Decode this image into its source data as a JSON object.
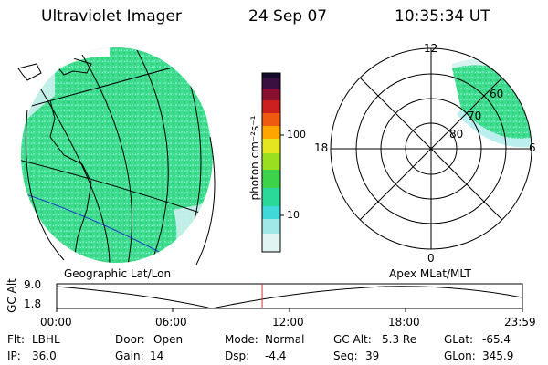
{
  "header": {
    "instrument": "Ultraviolet Imager",
    "date": "24 Sep 07",
    "time": "10:35:34 UT"
  },
  "colorbar": {
    "unit_label": "photon cm⁻²s⁻¹",
    "ticks": [
      "100",
      "10"
    ]
  },
  "geo_panel": {
    "label": "Geographic Lat/Lon"
  },
  "polar_panel": {
    "label": "Apex MLat/MLT",
    "mlt_labels": {
      "top": "12",
      "left": "18",
      "right": "6",
      "bottom": "0"
    },
    "lat_labels": [
      "60",
      "70",
      "80"
    ]
  },
  "altitude_plot": {
    "axis_label": "GC Alt",
    "y_ticks": [
      "9.0",
      "1.8"
    ],
    "x_ticks": [
      "00:00",
      "06:00",
      "12:00",
      "18:00",
      "23:59"
    ],
    "current_time_hours": 10.59
  },
  "status": {
    "row1": [
      {
        "label": "Flt:",
        "value": "LBHL"
      },
      {
        "label": "Door:",
        "value": "Open"
      },
      {
        "label": "Mode:",
        "value": "Normal"
      },
      {
        "label": "GC Alt:",
        "value": "5.3 Re"
      },
      {
        "label": "GLat:",
        "value": "-65.4"
      }
    ],
    "row2": [
      {
        "label": "IP:",
        "value": "36.0"
      },
      {
        "label": "Gain:",
        "value": "14"
      },
      {
        "label": "Dsp:",
        "value": "-4.4"
      },
      {
        "label": "Seq:",
        "value": "39"
      },
      {
        "label": "GLon:",
        "value": "345.9"
      }
    ]
  },
  "colors": {
    "aurora_main": "#33dd88",
    "aurora_light": "#bbeeee",
    "marker": "#cc3333"
  }
}
